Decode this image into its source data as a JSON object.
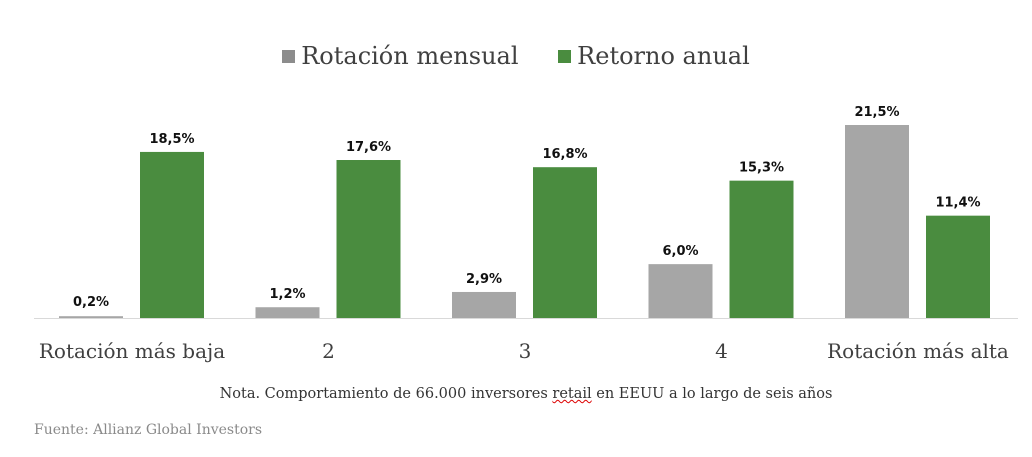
{
  "chart_data": {
    "type": "bar",
    "categories": [
      "Rotación más baja",
      "2",
      "3",
      "4",
      "Rotación más alta"
    ],
    "series": [
      {
        "name": "Rotación mensual",
        "color": "#a6a6a6",
        "values": [
          0.2,
          1.2,
          2.9,
          6.0,
          21.5
        ],
        "labels": [
          "0,2%",
          "1,2%",
          "2,9%",
          "6,0%",
          "21,5%"
        ]
      },
      {
        "name": "Retorno anual",
        "color": "#4a8c3f",
        "values": [
          18.5,
          17.6,
          16.8,
          15.3,
          11.4
        ],
        "labels": [
          "18,5%",
          "17,6%",
          "16,8%",
          "15,3%",
          "11,4%"
        ]
      }
    ],
    "ylim": [
      0,
      21.5
    ],
    "legend": "top",
    "grid": false
  },
  "note": {
    "before": "Nota. Comportamiento de 66.000 inversores ",
    "underlined": "retail",
    "after": " en EEUU a lo largo de seis años"
  },
  "source": "Fuente: Allianz Global Investors"
}
